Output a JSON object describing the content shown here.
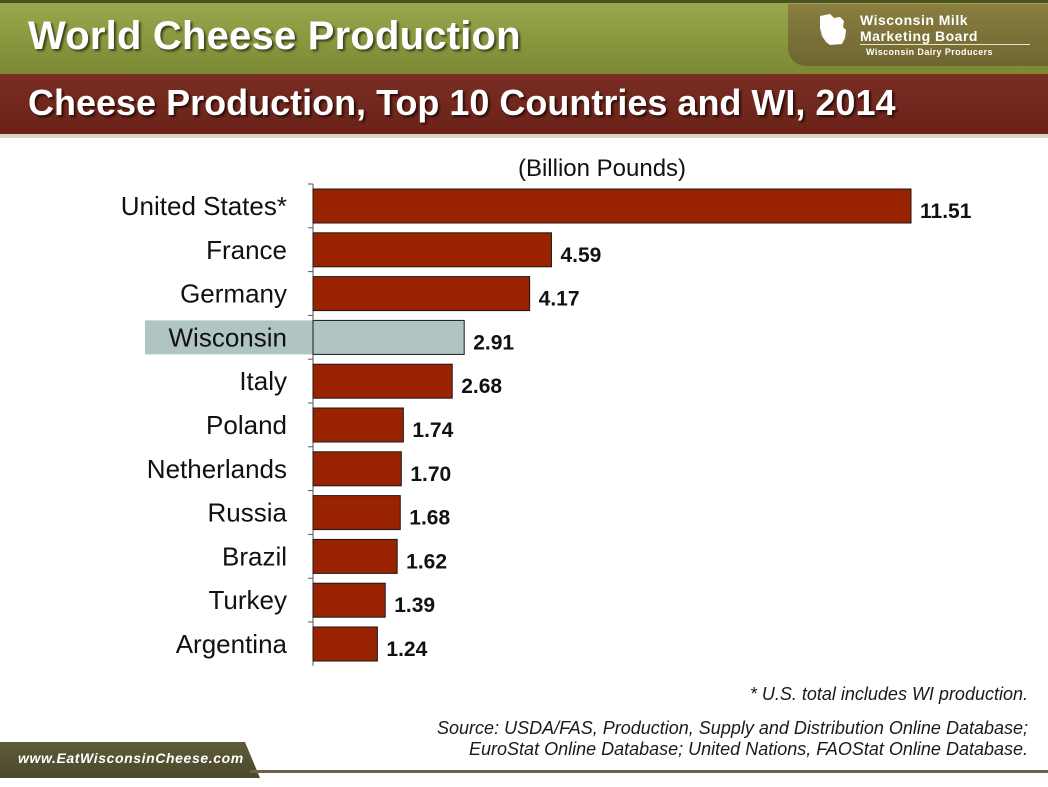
{
  "header": {
    "title": "World Cheese Production",
    "subtitle": "Cheese Production, Top 10 Countries and WI, 2014"
  },
  "logo": {
    "line1": "Wisconsin Milk",
    "line2": "Marketing Board",
    "line3": "Wisconsin Dairy Producers",
    "icon": "wisconsin-state-icon"
  },
  "chart_data": {
    "type": "bar",
    "orientation": "horizontal",
    "unit_label": "(Billion Pounds)",
    "categories": [
      "United States*",
      "France",
      "Germany",
      "Wisconsin",
      "Italy",
      "Poland",
      "Netherlands",
      "Russia",
      "Brazil",
      "Turkey",
      "Argentina"
    ],
    "values": [
      11.51,
      4.59,
      4.17,
      2.91,
      2.68,
      1.74,
      1.7,
      1.68,
      1.62,
      1.39,
      1.24
    ],
    "value_labels": [
      "11.51",
      "4.59",
      "4.17",
      "2.91",
      "2.68",
      "1.74",
      "1.70",
      "1.68",
      "1.62",
      "1.39",
      "1.24"
    ],
    "highlight": "Wisconsin",
    "colors": {
      "bar": "#992200",
      "highlight_bar": "#b0c4c4",
      "highlight_label_bg": "#b0c4c4"
    },
    "xlim": [
      0,
      11.51
    ],
    "grid": false,
    "legend": "none"
  },
  "notes": {
    "footnote": "* U.S. total includes WI production.",
    "source_line1": "Source: USDA/FAS, Production, Supply and Distribution Online Database;",
    "source_line2": "EuroStat Online Database; United Nations, FAOStat Online Database."
  },
  "footer": {
    "url": "www.EatWisconsinCheese.com"
  }
}
